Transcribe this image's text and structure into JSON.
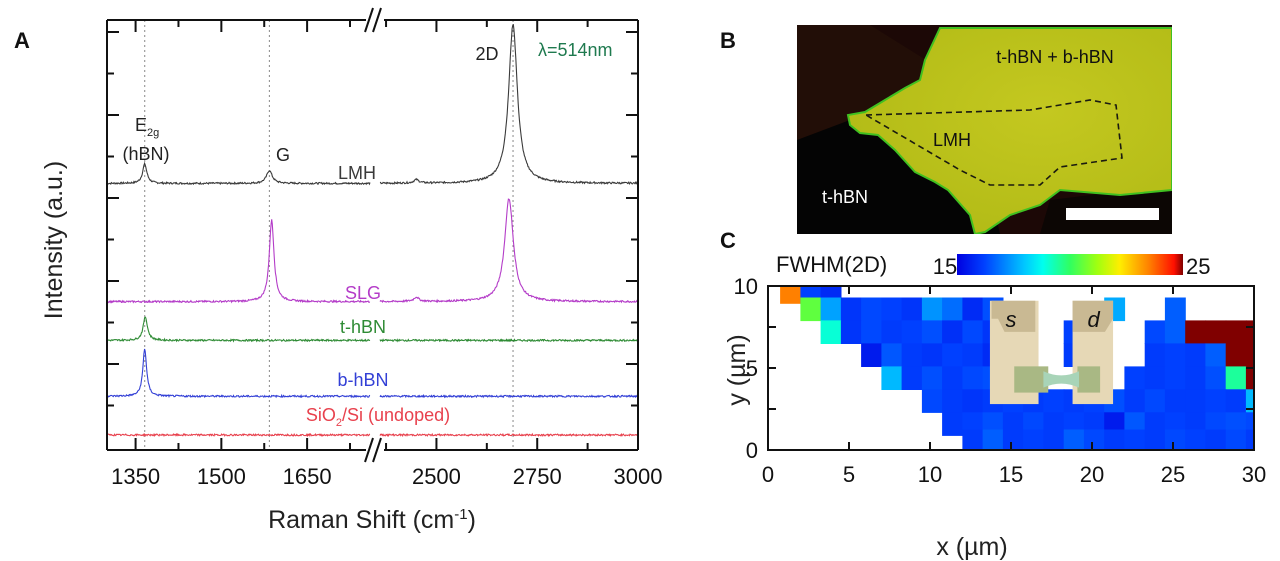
{
  "chart_data": [
    {
      "panel": "A",
      "type": "line",
      "title": "",
      "xlabel": "Raman Shift (cm⁻¹)",
      "ylabel": "Intensity (a.u.)",
      "x_broken_axis": true,
      "x_segments": [
        {
          "xlim": [
            1300,
            1760
          ],
          "ticks": [
            1350,
            1500,
            1650
          ]
        },
        {
          "xlim": [
            2360,
            3000
          ],
          "ticks": [
            2500,
            2750,
            3000
          ]
        }
      ],
      "xtick_labels": [
        "1350",
        "1500",
        "1650",
        "2500",
        "2750",
        "3000"
      ],
      "y_ticks_labeled": false,
      "grid": false,
      "reference_lines": [
        {
          "label": "E2g (hBN)",
          "x": 1366
        },
        {
          "label": "G",
          "x": 1584
        },
        {
          "label": "2D",
          "x": 2690
        }
      ],
      "annotations": [
        {
          "text": "E",
          "sub": "2g",
          "text2": "(hBN)",
          "color": "#222222"
        },
        {
          "text": "G",
          "color": "#222222"
        },
        {
          "text": "2D",
          "color": "#222222"
        },
        {
          "text": "λ=514nm",
          "color": "#1f7a4f"
        }
      ],
      "series": [
        {
          "name": "LMH",
          "label": "LMH",
          "color": "#3a3a3a",
          "baseline": 0.62,
          "peaks": [
            {
              "x": 1366,
              "height": 0.045,
              "width": 9
            },
            {
              "x": 1584,
              "height": 0.03,
              "width": 12
            },
            {
              "x": 2450,
              "height": 0.008,
              "width": 15
            },
            {
              "x": 2690,
              "height": 0.37,
              "width": 26
            }
          ]
        },
        {
          "name": "SLG",
          "label": "SLG",
          "color": "#b43cc8",
          "baseline": 0.345,
          "peaks": [
            {
              "x": 1588,
              "height": 0.19,
              "width": 10
            },
            {
              "x": 2450,
              "height": 0.01,
              "width": 15
            },
            {
              "x": 2680,
              "height": 0.24,
              "width": 26
            }
          ]
        },
        {
          "name": "t-hBN",
          "label": "t-hBN",
          "color": "#2e8b34",
          "baseline": 0.255,
          "peaks": [
            {
              "x": 1367,
              "height": 0.055,
              "width": 9
            }
          ]
        },
        {
          "name": "b-hBN",
          "label": "b-hBN",
          "color": "#3340d6",
          "baseline": 0.125,
          "peaks": [
            {
              "x": 1366,
              "height": 0.11,
              "width": 8
            }
          ]
        },
        {
          "name": "SiO2/Si (undoped)",
          "label_main": "SiO",
          "label_sub": "2",
          "label_rest": "/Si (undoped)",
          "color": "#e8414d",
          "baseline": 0.035,
          "peaks": []
        }
      ],
      "ylim": [
        0,
        1
      ]
    },
    {
      "panel": "C",
      "type": "heatmap",
      "title": "FWHM(2D)",
      "xlabel": "x (µm)",
      "ylabel": "y (µm)",
      "xlim": [
        0,
        30
      ],
      "ylim": [
        0,
        10
      ],
      "xticks": [
        0,
        5,
        10,
        15,
        20,
        25,
        30
      ],
      "yticks": [
        0,
        5,
        10
      ],
      "colorbar": {
        "min": 15,
        "max": 25,
        "min_label": "15",
        "max_label": "25",
        "colormap": "jet"
      },
      "cell_size_um": [
        1.25,
        1.4
      ],
      "device_overlay": {
        "source_label": "s",
        "drain_label": "d"
      },
      "cells_note": "values in cm^-1, estimated from color; rows listed top (y~9.5) to bottom (y~0.5); null = no data",
      "rows": [
        {
          "y": 9.65,
          "x0": 0.75,
          "values": [
            23.5,
            16.2,
            15.8
          ]
        },
        {
          "y": 8.6,
          "x0": 2.0,
          "values": [
            20.5,
            17.5,
            16.0,
            16.3,
            16.2,
            16.0,
            17.3,
            16.8,
            15.8,
            16.4,
            null,
            null,
            null,
            null,
            null,
            17.6,
            null,
            null,
            16.6
          ]
        },
        {
          "y": 7.2,
          "x0": 3.25,
          "values": [
            19.0,
            16.0,
            16.3,
            16.1,
            16.2,
            16.4,
            15.9,
            16.3,
            16.0,
            null,
            null,
            null,
            16.2,
            16.1,
            null,
            null,
            16.3,
            16.6,
            25,
            25,
            25,
            25,
            null,
            null,
            16.3
          ]
        },
        {
          "y": 5.8,
          "x0": 5.75,
          "values": [
            15.5,
            16.5,
            16.1,
            16.0,
            16.2,
            16.1,
            15.8,
            null,
            null,
            null,
            16.1,
            16.2,
            null,
            null,
            16.1,
            16.2,
            16.1,
            16.6,
            25,
            25,
            25,
            25
          ]
        },
        {
          "y": 4.4,
          "x0": 7.0,
          "values": [
            17.8,
            16.1,
            16.4,
            16.1,
            16.3,
            16.4,
            null,
            null,
            null,
            null,
            null,
            null,
            16.2,
            16.1,
            16.2,
            16.1,
            16.4,
            19.5,
            25,
            25
          ]
        },
        {
          "y": 3.0,
          "x0": 9.5,
          "values": [
            16.3,
            16.1,
            16.0,
            16.1,
            16.2,
            16.1,
            16.2,
            16.1,
            16.2,
            16.4,
            16.1,
            16.3,
            16.1,
            16.1,
            16.2,
            16.1,
            17.8,
            23.0
          ]
        },
        {
          "y": 1.6,
          "x0": 10.75,
          "values": [
            16.1,
            16.2,
            16.4,
            16.1,
            16.3,
            16.1,
            16.2,
            16.1,
            15.5,
            16.5,
            16.1,
            16.2,
            16.1,
            16.3,
            16.4,
            16.3,
            19.0
          ]
        },
        {
          "y": 0.55,
          "x0": 12.0,
          "values": [
            16.1,
            16.6,
            16.1,
            16.2,
            16.1,
            16.6,
            16.3,
            16.1,
            16.2,
            16.1,
            16.3,
            16.2,
            16.1,
            16.3,
            16.1,
            17.8
          ]
        }
      ]
    }
  ],
  "panels": {
    "a_letter": "A",
    "b_letter": "B",
    "c_letter": "C"
  },
  "image_b": {
    "labels": {
      "top": "t-hBN + b-hBN",
      "center": "LMH",
      "bottom_left": "t-hBN"
    },
    "colors": {
      "background": "#1a0a08",
      "flake": "#bcc21a",
      "dark_flake": "#050505"
    },
    "has_scale_bar": true
  }
}
